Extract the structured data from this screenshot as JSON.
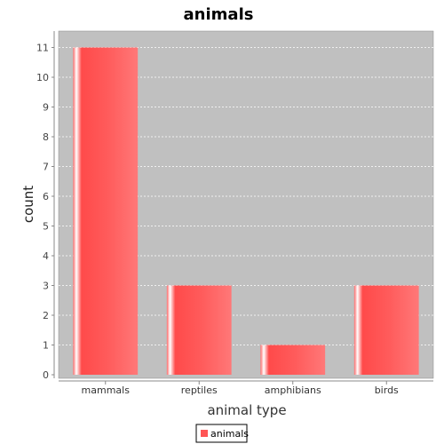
{
  "chart_data": {
    "type": "bar",
    "title": "animals",
    "xlabel": "animal type",
    "ylabel": "count",
    "categories": [
      "mammals",
      "reptiles",
      "amphibians",
      "birds"
    ],
    "series": [
      {
        "name": "animals",
        "values": [
          11,
          3,
          1,
          3
        ]
      }
    ],
    "ylim": [
      0,
      11.5
    ],
    "yticks": [
      0,
      1,
      2,
      3,
      4,
      5,
      6,
      7,
      8,
      9,
      10,
      11
    ],
    "grid": true,
    "legend": "bottom-center",
    "colors": {
      "bar": "#ff5555",
      "plot_background": "#c0c0c0",
      "gridline": "#ffffff"
    }
  }
}
